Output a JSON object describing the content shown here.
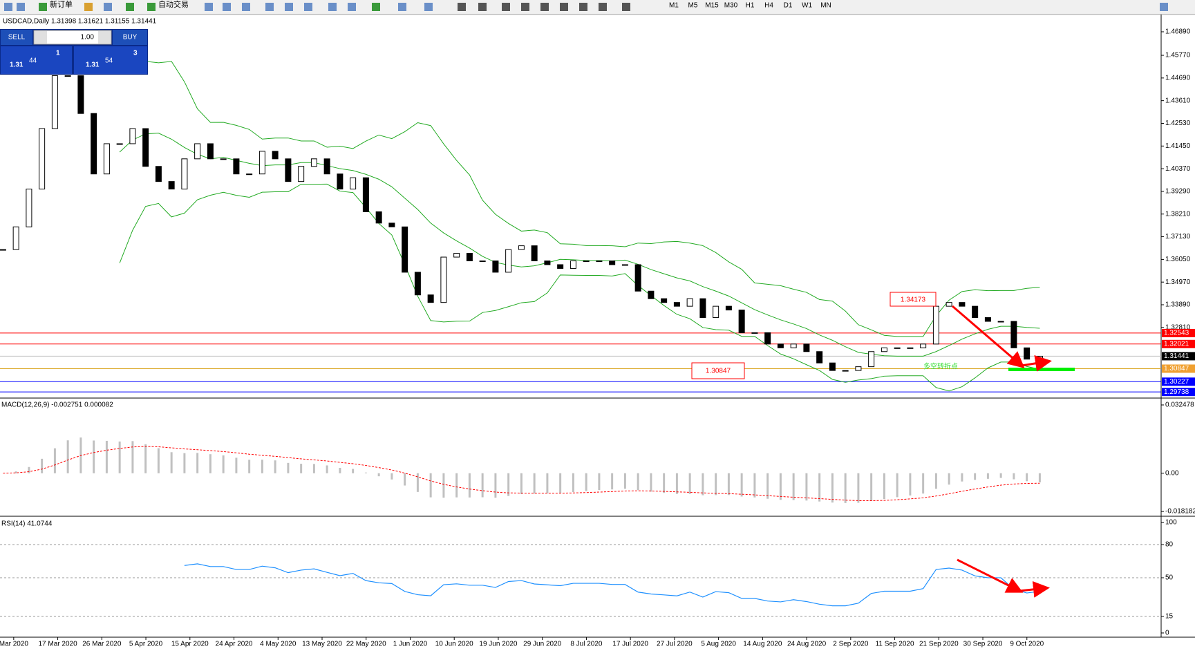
{
  "toolbar": {
    "new_order": "新订单",
    "auto_trading": "自动交易",
    "timeframes": [
      "M1",
      "M5",
      "M15",
      "M30",
      "H1",
      "H4",
      "D1",
      "W1",
      "MN"
    ]
  },
  "trade_panel": {
    "sell": "SELL",
    "buy": "BUY",
    "volume": "1.00",
    "bid": {
      "big": "1.31",
      "pips": "44",
      "point": "1"
    },
    "ask": {
      "big": "1.31",
      "pips": "54",
      "point": "3"
    }
  },
  "chart_data": {
    "type": "candlestick",
    "title": "USDCAD,Daily  1.31398 1.31621 1.31155 1.31441",
    "closes": [
      1.3652,
      1.376,
      1.394,
      1.4228,
      1.448,
      1.448,
      1.43,
      1.4012,
      1.4156,
      1.4156,
      1.4228,
      1.4048,
      1.3976,
      1.394,
      1.4084,
      1.4156,
      1.4084,
      1.4084,
      1.4012,
      1.4012,
      1.412,
      1.4084,
      1.3976,
      1.4048,
      1.4084,
      1.4012,
      1.394,
      1.3994,
      1.3832,
      1.3778,
      1.376,
      1.3544,
      1.3436,
      1.34,
      1.3616,
      1.3634,
      1.3598,
      1.3598,
      1.3544,
      1.3652,
      1.367,
      1.3598,
      1.358,
      1.3562,
      1.3598,
      1.3598,
      1.3598,
      1.358,
      1.358,
      1.3454,
      1.3418,
      1.34,
      1.3382,
      1.3418,
      1.3328,
      1.3382,
      1.3364,
      1.3256,
      1.3256,
      1.3202,
      1.3184,
      1.3202,
      1.3166,
      1.3112,
      1.3076,
      1.3076,
      1.3094,
      1.3166,
      1.3184,
      1.3184,
      1.3184,
      1.3202,
      1.3382,
      1.34,
      1.3382,
      1.3328,
      1.331,
      1.331,
      1.3184,
      1.313,
      1.3144
    ],
    "up_color": "#ffffff",
    "down_color": "#000000",
    "band_color": "#22aa22",
    "x_labels": [
      "Mar 2020",
      "17 Mar 2020",
      "26 Mar 2020",
      "5 Apr 2020",
      "15 Apr 2020",
      "24 Apr 2020",
      "4 May 2020",
      "13 May 2020",
      "22 May 2020",
      "1 Jun 2020",
      "10 Jun 2020",
      "19 Jun 2020",
      "29 Jun 2020",
      "8 Jul 2020",
      "17 Jul 2020",
      "27 Jul 2020",
      "5 Aug 2020",
      "14 Aug 2020",
      "24 Aug 2020",
      "2 Sep 2020",
      "11 Sep 2020",
      "21 Sep 2020",
      "30 Sep 2020",
      "9 Oct 2020"
    ],
    "ylim": [
      1.2948,
      1.4768
    ],
    "yticks": [
      {
        "value": 1.4689,
        "label": "1.46890"
      },
      {
        "value": 1.4577,
        "label": "1.45770"
      },
      {
        "value": 1.4469,
        "label": "1.44690"
      },
      {
        "value": 1.4361,
        "label": "1.43610"
      },
      {
        "value": 1.4253,
        "label": "1.42530"
      },
      {
        "value": 1.4145,
        "label": "1.41450"
      },
      {
        "value": 1.4037,
        "label": "1.40370"
      },
      {
        "value": 1.3929,
        "label": "1.39290"
      },
      {
        "value": 1.3821,
        "label": "1.38210"
      },
      {
        "value": 1.3713,
        "label": "1.37130"
      },
      {
        "value": 1.3605,
        "label": "1.36050"
      },
      {
        "value": 1.3497,
        "label": "1.34970"
      },
      {
        "value": 1.3389,
        "label": "1.33890"
      },
      {
        "value": 1.3281,
        "label": "1.32810"
      }
    ],
    "levels": [
      {
        "value": 1.32543,
        "color": "#ff0000",
        "label_color": "#ff0000"
      },
      {
        "value": 1.32021,
        "color": "#ff0000",
        "label_color": "#ff0000"
      },
      {
        "value": 1.31441,
        "color": "#c0c0c0",
        "label_color": "#000000"
      },
      {
        "value": 1.30847,
        "color": "#daa520",
        "label_color": "#f0a030"
      },
      {
        "value": 1.30227,
        "color": "#0000ff",
        "label_color": "#0000ff"
      },
      {
        "value": 1.29738,
        "color": "#0000ff",
        "label_color": "#0000ff"
      }
    ],
    "annotations": {
      "high": 1.34173,
      "low": 1.30847,
      "turning_point": "多空转折点"
    },
    "indicators": [
      {
        "type": "macd",
        "label": "MACD(12,26,9) -0.002751 0.000082",
        "ylim": [
          -0.0198,
          0.0351
        ],
        "yticks": [
          0.032478,
          {
            "value": 0,
            "label": "0.00"
          },
          -0.018182
        ],
        "color": "#c0c0c0",
        "signal_color": "#ff0000"
      },
      {
        "type": "rsi",
        "label": "RSI(14) 41.0744",
        "ylim": [
          -3.8,
          103.8
        ],
        "yticks": [
          100,
          80,
          50,
          15,
          0
        ],
        "levels": [
          80,
          50,
          15
        ],
        "color": "#1e90ff"
      }
    ]
  }
}
